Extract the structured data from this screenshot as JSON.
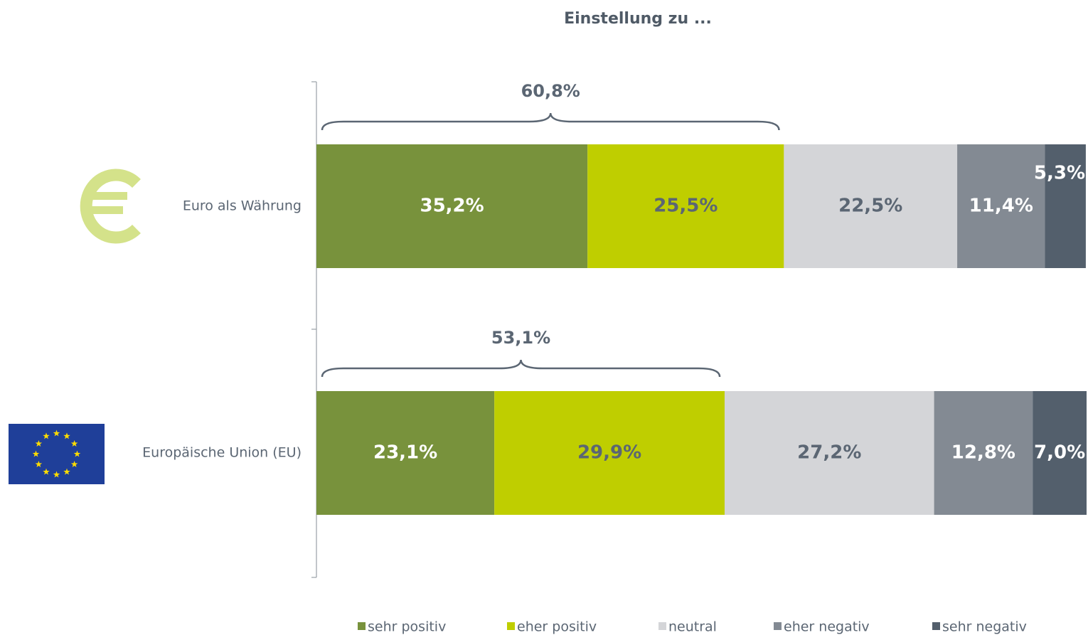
{
  "chart_data": {
    "type": "stacked_bar_horizontal",
    "title": "Einstellung zu ...",
    "categories": [
      "Euro als Währung",
      "Europäische Union (EU)"
    ],
    "xlim": [
      0,
      100
    ],
    "series": [
      {
        "name": "sehr positiv",
        "color": "#78923c",
        "label_color": "#ffffff",
        "values": [
          35.2,
          23.1
        ],
        "value_labels": [
          "35,2%",
          "23,1%"
        ]
      },
      {
        "name": "eher positiv",
        "color": "#bfce00",
        "label_color": "#5b6673",
        "values": [
          25.5,
          29.9
        ],
        "value_labels": [
          "25,5%",
          "29,9%"
        ]
      },
      {
        "name": "neutral",
        "color": "#d4d5d8",
        "label_color": "#5b6673",
        "values": [
          22.5,
          27.2
        ],
        "value_labels": [
          "22,5%",
          "27,2%"
        ]
      },
      {
        "name": "eher negativ",
        "color": "#838a93",
        "label_color": "#ffffff",
        "values": [
          11.4,
          12.8
        ],
        "value_labels": [
          "11,4%",
          "12,8%"
        ]
      },
      {
        "name": "sehr negativ",
        "color": "#535f6c",
        "label_color": "#ffffff",
        "values": [
          5.3,
          7.0
        ],
        "value_labels": [
          "5,3%",
          "7,0%"
        ]
      }
    ],
    "annotations": [
      {
        "value": 60.8,
        "label": "60,8%"
      },
      {
        "value": 53.1,
        "label": "53,1%"
      }
    ]
  }
}
